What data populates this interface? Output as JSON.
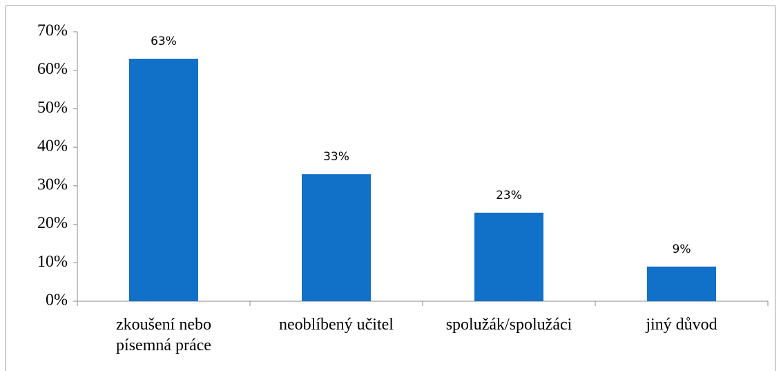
{
  "chart_data": {
    "type": "bar",
    "categories": [
      "zkoušení nebo písemná práce",
      "neoblíbený učitel",
      "spolužák/spolužáci",
      "jiný důvod"
    ],
    "values": [
      63,
      33,
      23,
      9
    ],
    "value_labels": [
      "63%",
      "33%",
      "23%",
      "9%"
    ],
    "color": "#1170c8",
    "ylim": [
      0,
      70
    ],
    "yticks": [
      {
        "value": 0,
        "label": "0%"
      },
      {
        "value": 10,
        "label": "10%"
      },
      {
        "value": 20,
        "label": "20%"
      },
      {
        "value": 30,
        "label": "30%"
      },
      {
        "value": 40,
        "label": "40%"
      },
      {
        "value": 50,
        "label": "50%"
      },
      {
        "value": 60,
        "label": "60%"
      },
      {
        "value": 70,
        "label": "70%"
      }
    ],
    "grid": false
  }
}
